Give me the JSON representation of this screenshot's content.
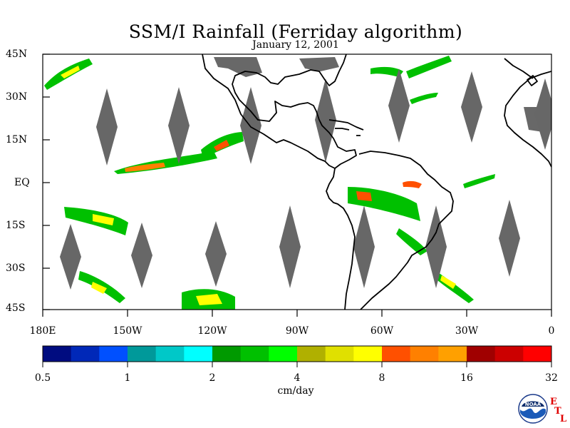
{
  "title": "SSM/I Rainfall (Ferriday algorithm)",
  "date": "January 12, 2001",
  "lat_labels": [
    "45N",
    "30N",
    "15N",
    "EQ",
    "15S",
    "30S",
    "45S"
  ],
  "lon_labels": [
    "180E",
    "150W",
    "120W",
    "90W",
    "60W",
    "30W",
    "0"
  ],
  "colorbar": {
    "colors": [
      "#000c80",
      "#0028b8",
      "#0050ff",
      "#00999a",
      "#00c8c8",
      "#00ffff",
      "#009a00",
      "#00c000",
      "#00ff00",
      "#b0b000",
      "#e0e000",
      "#ffff00",
      "#ff5000",
      "#ff8000",
      "#ffa000",
      "#a00000",
      "#cc0000",
      "#ff0000"
    ],
    "labels": [
      "0.5",
      "1",
      "2",
      "4",
      "8",
      "16",
      "32"
    ],
    "units": "cm/day"
  },
  "logo": {
    "text": "NOAA",
    "suffix": [
      "E",
      "T",
      "L"
    ]
  }
}
